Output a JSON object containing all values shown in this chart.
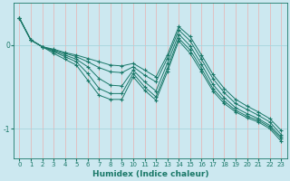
{
  "xlabel": "Humidex (Indice chaleur)",
  "background_color": "#cce8f0",
  "grid_color_v": "#e8b0b0",
  "grid_color_h": "#a8d4dc",
  "line_color": "#1a7868",
  "xlim": [
    -0.5,
    23.5
  ],
  "ylim": [
    -1.35,
    0.5
  ],
  "xticks": [
    0,
    1,
    2,
    3,
    4,
    5,
    6,
    7,
    8,
    9,
    10,
    11,
    12,
    13,
    14,
    15,
    16,
    17,
    18,
    19,
    20,
    21,
    22,
    23
  ],
  "yticks": [
    0,
    -1
  ],
  "series": [
    [
      0.32,
      0.06,
      -0.02,
      -0.05,
      -0.09,
      -0.12,
      -0.16,
      -0.2,
      -0.24,
      -0.25,
      -0.22,
      -0.3,
      -0.38,
      -0.12,
      0.22,
      0.1,
      -0.12,
      -0.35,
      -0.52,
      -0.65,
      -0.73,
      -0.8,
      -0.88,
      -1.02
    ],
    [
      0.32,
      0.06,
      -0.02,
      -0.06,
      -0.1,
      -0.14,
      -0.2,
      -0.27,
      -0.32,
      -0.33,
      -0.26,
      -0.36,
      -0.44,
      -0.16,
      0.18,
      0.05,
      -0.17,
      -0.4,
      -0.57,
      -0.7,
      -0.77,
      -0.84,
      -0.92,
      -1.07
    ],
    [
      0.32,
      0.06,
      -0.02,
      -0.07,
      -0.12,
      -0.17,
      -0.26,
      -0.4,
      -0.48,
      -0.49,
      -0.3,
      -0.44,
      -0.55,
      -0.22,
      0.13,
      -0.01,
      -0.23,
      -0.47,
      -0.63,
      -0.75,
      -0.82,
      -0.88,
      -0.96,
      -1.1
    ],
    [
      0.32,
      0.06,
      -0.02,
      -0.08,
      -0.14,
      -0.2,
      -0.34,
      -0.52,
      -0.58,
      -0.58,
      -0.34,
      -0.5,
      -0.62,
      -0.28,
      0.08,
      -0.06,
      -0.28,
      -0.52,
      -0.67,
      -0.78,
      -0.85,
      -0.9,
      -0.98,
      -1.12
    ],
    [
      0.32,
      0.06,
      -0.02,
      -0.1,
      -0.17,
      -0.24,
      -0.42,
      -0.6,
      -0.65,
      -0.65,
      -0.38,
      -0.54,
      -0.66,
      -0.32,
      0.05,
      -0.1,
      -0.32,
      -0.55,
      -0.7,
      -0.8,
      -0.87,
      -0.92,
      -1.0,
      -1.15
    ]
  ]
}
